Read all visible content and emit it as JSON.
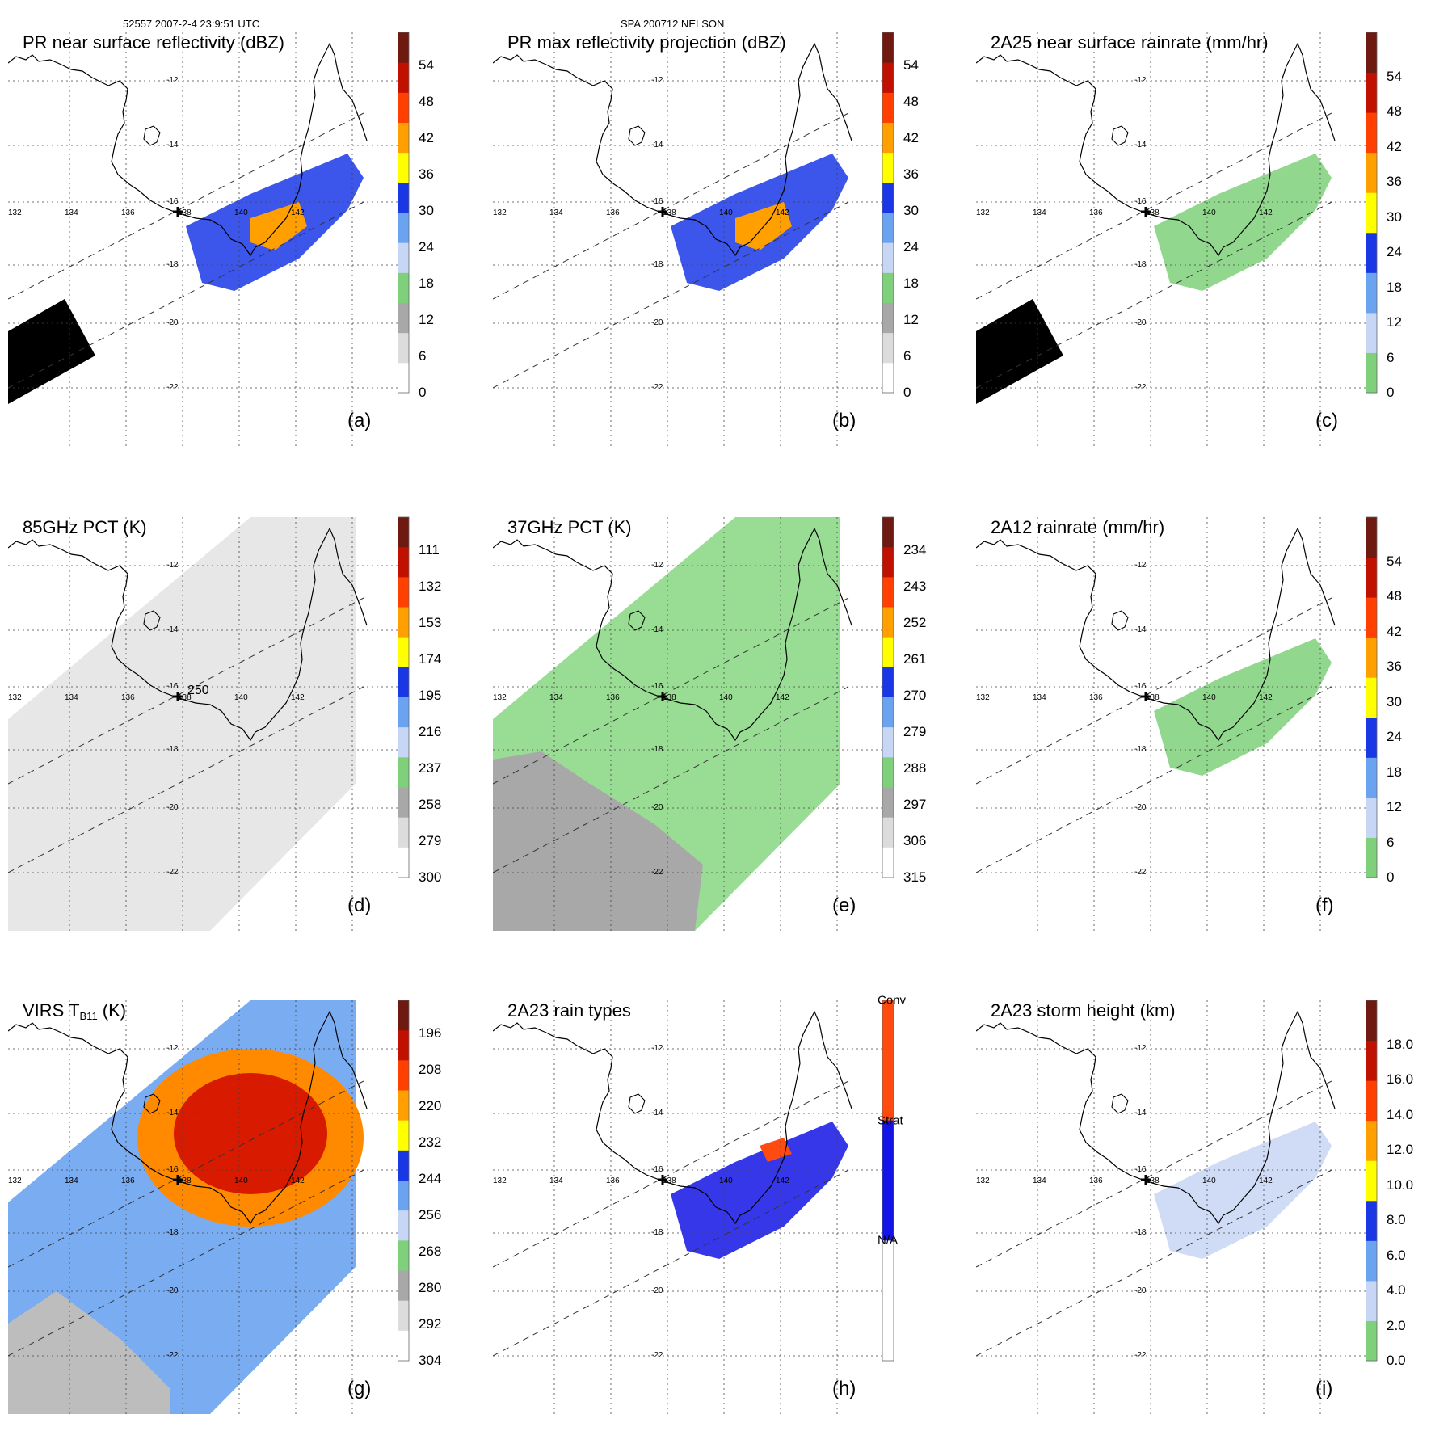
{
  "header": {
    "left": "52557 2007-2-4 23:9:51 UTC",
    "center": "SPA 200712 NELSON"
  },
  "grid": {
    "lon_labels": [
      "132",
      "134",
      "136",
      "138",
      "140",
      "142"
    ],
    "lat_labels": [
      "-12",
      "-14",
      "-16",
      "-18",
      "-20",
      "-22"
    ]
  },
  "panels": [
    {
      "key": "a",
      "title": "PR near surface reflectivity (dBZ)",
      "label": "(a)",
      "scale": "dbz",
      "ticks": [
        "54",
        "48",
        "42",
        "36",
        "30",
        "24",
        "18",
        "12",
        "6",
        "0"
      ]
    },
    {
      "key": "b",
      "title": "PR max reflectivity projection (dBZ)",
      "label": "(b)",
      "scale": "dbz",
      "ticks": [
        "54",
        "48",
        "42",
        "36",
        "30",
        "24",
        "18",
        "12",
        "6",
        "0"
      ]
    },
    {
      "key": "c",
      "title": "2A25 near surface rainrate (mm/hr)",
      "label": "(c)",
      "scale": "rain",
      "ticks": [
        "54",
        "48",
        "42",
        "36",
        "30",
        "24",
        "18",
        "12",
        "6",
        "0"
      ]
    },
    {
      "key": "d",
      "title": "85GHz PCT (K)",
      "label": "(d)",
      "scale": "pct",
      "ticks": [
        "111",
        "132",
        "153",
        "174",
        "195",
        "216",
        "237",
        "258",
        "279",
        "300"
      ],
      "annotation": "250"
    },
    {
      "key": "e",
      "title": "37GHz PCT (K)",
      "label": "(e)",
      "scale": "pct",
      "ticks": [
        "234",
        "243",
        "252",
        "261",
        "270",
        "279",
        "288",
        "297",
        "306",
        "315"
      ]
    },
    {
      "key": "f",
      "title": "2A12 rainrate (mm/hr)",
      "label": "(f)",
      "scale": "rain",
      "ticks": [
        "54",
        "48",
        "42",
        "36",
        "30",
        "24",
        "18",
        "12",
        "6",
        "0"
      ]
    },
    {
      "key": "g",
      "title_main": "VIRS T",
      "title_sub": "B11",
      "title_unit": " (K)",
      "label": "(g)",
      "scale": "pct",
      "ticks": [
        "196",
        "208",
        "220",
        "232",
        "244",
        "256",
        "268",
        "280",
        "292",
        "304"
      ]
    },
    {
      "key": "h",
      "title": "2A23 rain types",
      "label": "(h)",
      "scale": "cat",
      "ticks": [
        "Conv",
        "Strat",
        "N/A"
      ]
    },
    {
      "key": "i",
      "title": "2A23 storm height (km)",
      "label": "(i)",
      "scale": "rain",
      "ticks": [
        "18.0",
        "16.0",
        "14.0",
        "12.0",
        "10.0",
        "8.0",
        "6.0",
        "4.0",
        "2.0",
        "0.0"
      ]
    }
  ],
  "colors": {
    "dbz": [
      "#ffffff",
      "#dcdcdc",
      "#a8a8a8",
      "#7ed17a",
      "#c8d6f5",
      "#6aa3f0",
      "#1a37e6",
      "#ffff00",
      "#ff9f00",
      "#ff4000",
      "#c01000",
      "#6e1a10"
    ],
    "rain": [
      "#7ed17a",
      "#c8d6f5",
      "#6aa3f0",
      "#1a37e6",
      "#ffff00",
      "#ff9f00",
      "#ff4000",
      "#c01000",
      "#6e1a10"
    ],
    "pct": [
      "#6e1a10",
      "#c01000",
      "#ff4000",
      "#ff9f00",
      "#ffff00",
      "#1a37e6",
      "#6aa3f0",
      "#c8d6f5",
      "#7ed17a",
      "#a8a8a8",
      "#dcdcdc",
      "#ffffff"
    ],
    "cat": [
      "#ff4a10",
      "#1414e6",
      "#ffffff"
    ]
  }
}
